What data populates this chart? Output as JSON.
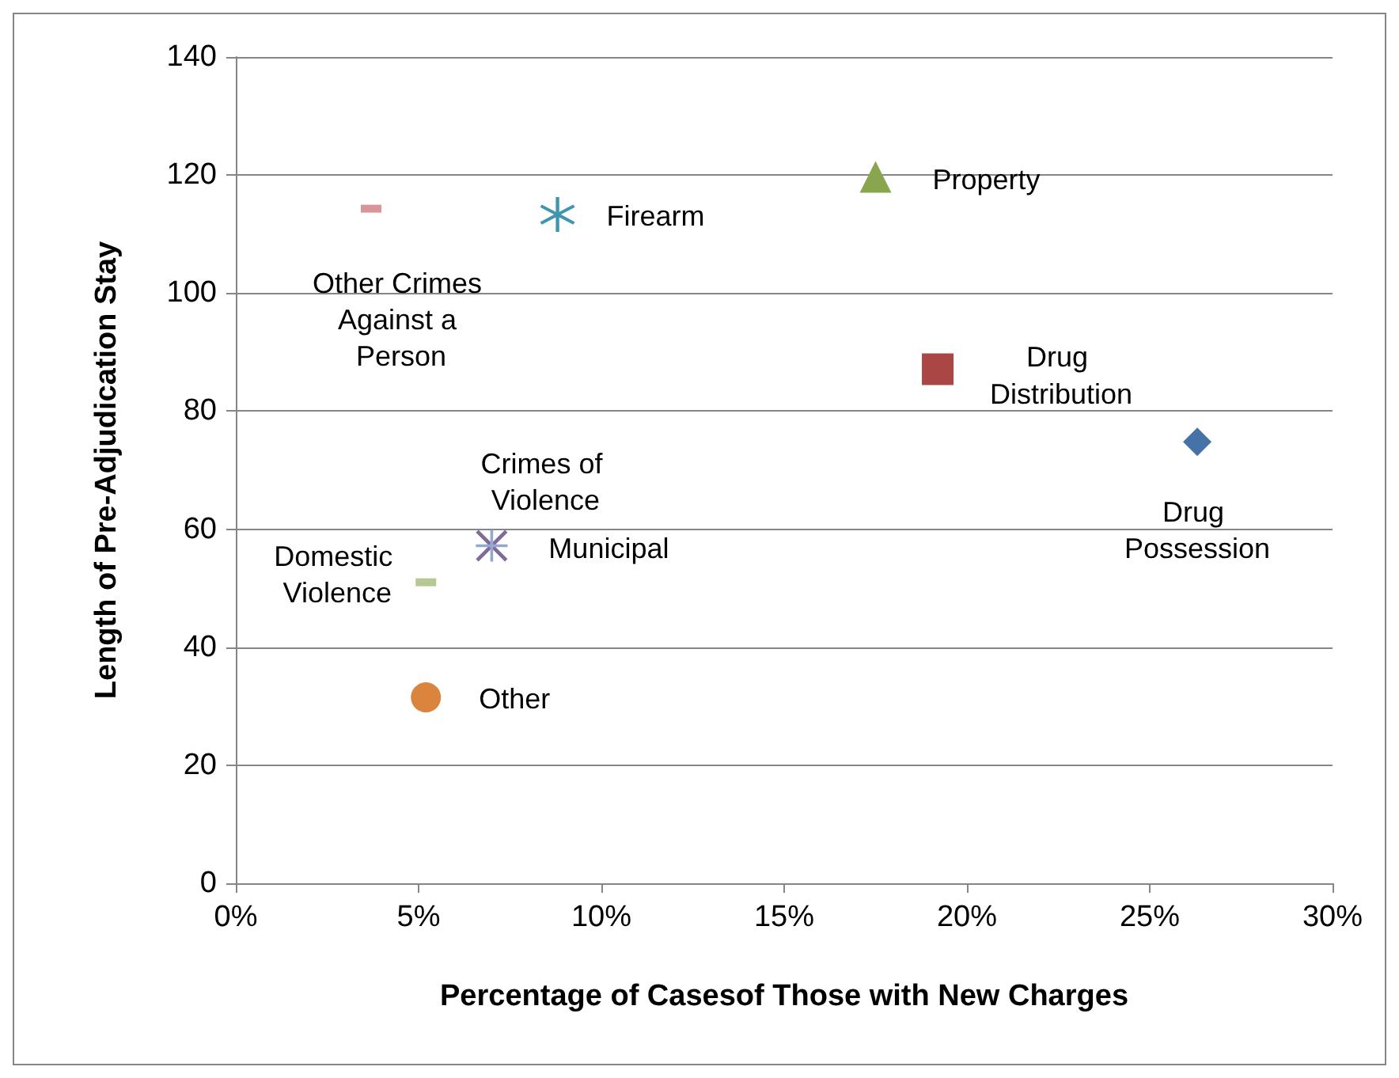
{
  "chart_data": {
    "type": "scatter",
    "xlabel": "Percentage of Casesof Those with New Charges",
    "ylabel": "Length of Pre-Adjudication Stay",
    "xlim": [
      0,
      30
    ],
    "xticks": [
      {
        "value": 0,
        "label": "0%"
      },
      {
        "value": 5,
        "label": "5%"
      },
      {
        "value": 10,
        "label": "10%"
      },
      {
        "value": 15,
        "label": "15%"
      },
      {
        "value": 20,
        "label": "20%"
      },
      {
        "value": 25,
        "label": "25%"
      },
      {
        "value": 30,
        "label": "30%"
      }
    ],
    "ylim": [
      0,
      140
    ],
    "yticks": [
      0,
      20,
      40,
      60,
      80,
      100,
      120,
      140
    ],
    "grid": "y",
    "legend": false,
    "series": [
      {
        "name": "Drug Possession",
        "color": "#4572a7",
        "marker": "diamond",
        "x": [
          26.3
        ],
        "values": [
          74.8
        ]
      },
      {
        "name": "Drug Distribution",
        "color": "#aa4643",
        "marker": "square",
        "x": [
          19.2
        ],
        "values": [
          87.1
        ]
      },
      {
        "name": "Property",
        "color": "#89a54e",
        "marker": "triangle",
        "x": [
          17.5
        ],
        "values": [
          119.7
        ]
      },
      {
        "name": "Crimes of Violence",
        "color": "#80699b",
        "marker": "cross",
        "x": [
          7.0
        ],
        "values": [
          57.2
        ]
      },
      {
        "name": "Firearm",
        "color": "#3d96ae",
        "marker": "star",
        "x": [
          8.8
        ],
        "values": [
          113.3
        ]
      },
      {
        "name": "Other",
        "color": "#db843d",
        "marker": "circle",
        "x": [
          5.2
        ],
        "values": [
          31.5
        ]
      },
      {
        "name": "Municipal",
        "color": "#92a8cd",
        "marker": "plus",
        "x": [
          7.0
        ],
        "values": [
          57.2
        ]
      },
      {
        "name": "Other Crimes Against a Person",
        "color": "#d9969a",
        "marker": "square",
        "x": [
          3.7
        ],
        "values": [
          114.3
        ]
      },
      {
        "name": "Domestic Violence",
        "color": "#b5ca92",
        "marker": "square",
        "x": [
          5.2
        ],
        "values": [
          51.0
        ]
      }
    ]
  }
}
